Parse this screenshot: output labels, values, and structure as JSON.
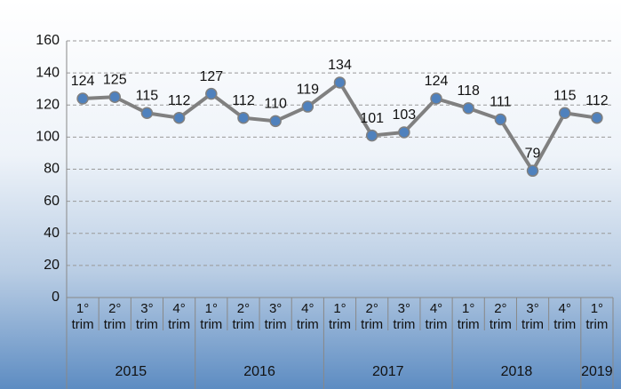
{
  "chart_data": {
    "type": "line",
    "groups": [
      {
        "label": "2015",
        "categories": [
          "1° trim",
          "2° trim",
          "3° trim",
          "4° trim"
        ]
      },
      {
        "label": "2016",
        "categories": [
          "1° trim",
          "2° trim",
          "3° trim",
          "4° trim"
        ]
      },
      {
        "label": "2017",
        "categories": [
          "1° trim",
          "2° trim",
          "3° trim",
          "4° trim"
        ]
      },
      {
        "label": "2018",
        "categories": [
          "1° trim",
          "2° trim",
          "3° trim",
          "4° trim"
        ]
      },
      {
        "label": "2019",
        "categories": [
          "1° trim"
        ]
      }
    ],
    "values": [
      124,
      125,
      115,
      112,
      127,
      112,
      110,
      119,
      134,
      101,
      103,
      124,
      118,
      111,
      79,
      115,
      112
    ],
    "color": "#808080",
    "marker_color": "#4f81bd",
    "ylim": [
      0,
      160
    ],
    "yticks": [
      0,
      20,
      40,
      60,
      80,
      100,
      120,
      140,
      160
    ],
    "grid": true
  }
}
